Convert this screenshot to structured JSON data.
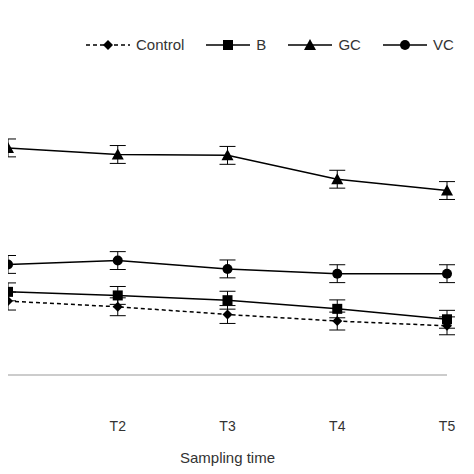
{
  "chart_data": {
    "type": "line",
    "x_label": "Sampling time",
    "categories": [
      null,
      "T2",
      "T3",
      "T4",
      "T5"
    ],
    "ylim": [
      0,
      10
    ],
    "yticks": [
      0,
      10
    ],
    "tick_labels": "x",
    "grid": false,
    "legend": "top",
    "series": [
      {
        "name": "Control",
        "color": "#000000",
        "marker": "diamond",
        "line_style": "dashed",
        "values": [
          2.48,
          2.29,
          2.03,
          1.81,
          1.65
        ],
        "errors": [
          0.3,
          0.3,
          0.3,
          0.3,
          0.3
        ]
      },
      {
        "name": "B",
        "color": "#000000",
        "marker": "square",
        "line_style": "solid",
        "values": [
          2.79,
          2.67,
          2.51,
          2.22,
          1.87
        ],
        "errors": [
          0.3,
          0.3,
          0.3,
          0.3,
          0.3
        ]
      },
      {
        "name": "GC",
        "color": "#000000",
        "marker": "triangle",
        "line_style": "solid",
        "values": [
          7.62,
          7.4,
          7.37,
          6.57,
          6.19
        ],
        "errors": [
          0.3,
          0.3,
          0.3,
          0.3,
          0.3
        ]
      },
      {
        "name": "VC",
        "color": "#000000",
        "marker": "circle",
        "line_style": "solid",
        "values": [
          3.71,
          3.84,
          3.56,
          3.4,
          3.4
        ],
        "errors": [
          0.3,
          0.3,
          0.3,
          0.3,
          0.3
        ]
      }
    ]
  }
}
